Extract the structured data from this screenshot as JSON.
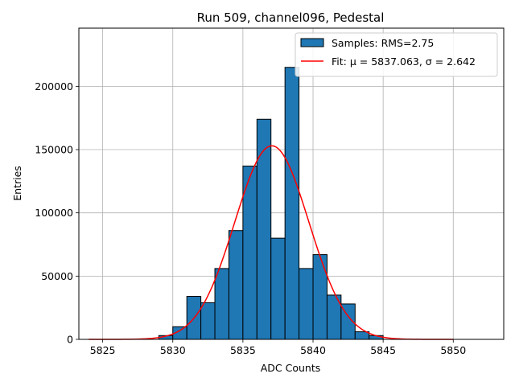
{
  "chart_data": {
    "type": "bar",
    "title": "Run 509, channel096, Pedestal",
    "xlabel": "ADC Counts",
    "ylabel": "Entries",
    "xlim": [
      5823.3,
      5853.6
    ],
    "ylim": [
      0,
      246000
    ],
    "grid": true,
    "legend_position": "top-right",
    "bin_width": 1,
    "bins": [
      {
        "x": 5829,
        "value": 3000
      },
      {
        "x": 5830,
        "value": 10000
      },
      {
        "x": 5831,
        "value": 34000
      },
      {
        "x": 5832,
        "value": 29000
      },
      {
        "x": 5833,
        "value": 56000
      },
      {
        "x": 5834,
        "value": 86000
      },
      {
        "x": 5835,
        "value": 137000
      },
      {
        "x": 5836,
        "value": 174000
      },
      {
        "x": 5837,
        "value": 80000
      },
      {
        "x": 5838,
        "value": 215000
      },
      {
        "x": 5839,
        "value": 56000
      },
      {
        "x": 5840,
        "value": 67000
      },
      {
        "x": 5841,
        "value": 35000
      },
      {
        "x": 5842,
        "value": 28000
      },
      {
        "x": 5843,
        "value": 6000
      },
      {
        "x": 5844,
        "value": 3000
      }
    ],
    "fit": {
      "mu": 5837.063,
      "sigma": 2.642,
      "amplitude": 153000,
      "x_range": [
        5824,
        5850
      ]
    },
    "xticks": [
      5825,
      5830,
      5835,
      5840,
      5845,
      5850
    ],
    "yticks": [
      0,
      50000,
      100000,
      150000,
      200000
    ],
    "series": [
      {
        "name": "Samples: RMS=2.75",
        "color": "#1f77b4"
      },
      {
        "name": "Fit: μ = 5837.063, σ = 2.642",
        "color": "#ff0000"
      }
    ]
  }
}
